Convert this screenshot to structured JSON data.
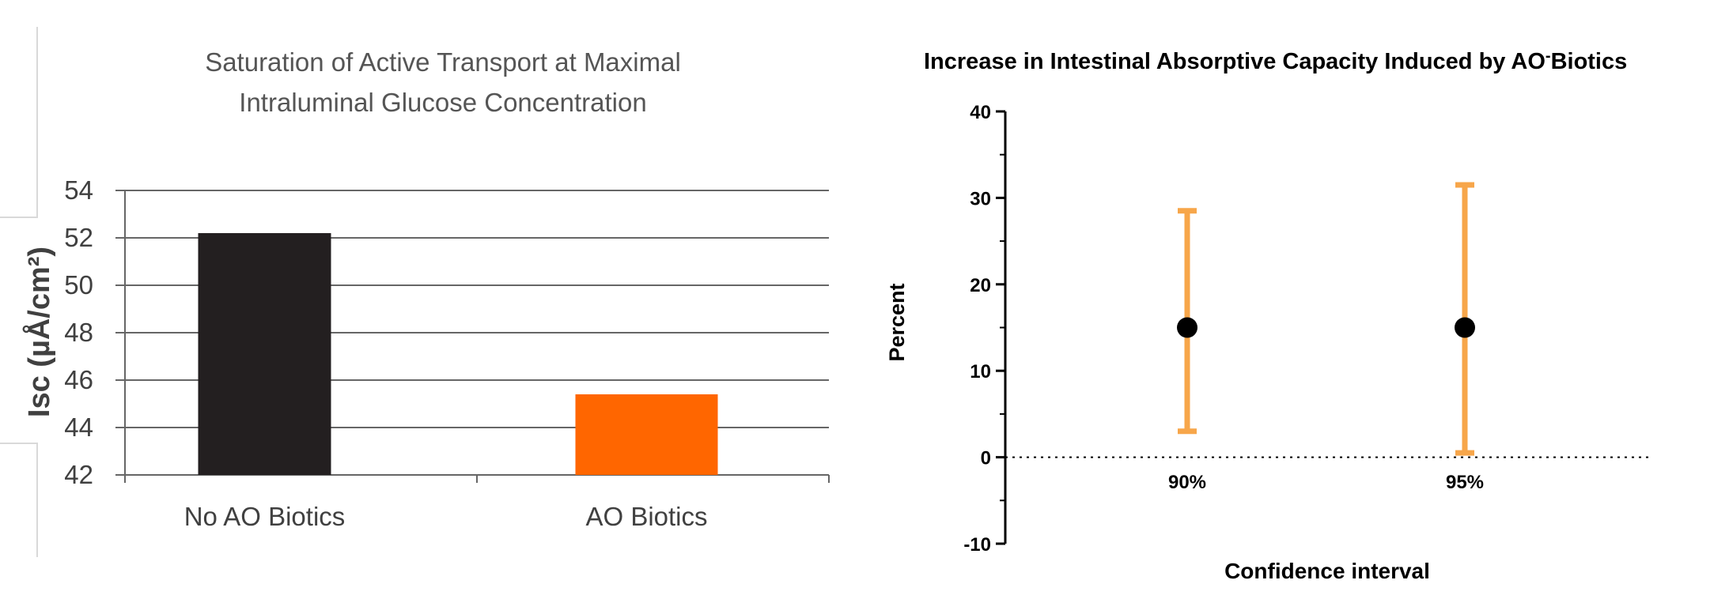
{
  "chart_data": [
    {
      "type": "bar",
      "title": "Saturation of Active Transport at Maximal Intraluminal Glucose Concentration",
      "title_lines": [
        "Saturation of Active Transport at Maximal",
        "Intraluminal Glucose Concentration"
      ],
      "ylabel": "Isc (µÅ/cm²)",
      "xlabel": "",
      "categories": [
        "No AO Biotics",
        "AO Biotics"
      ],
      "values": [
        52.2,
        45.4
      ],
      "colors": [
        "#231f20",
        "#ff6600"
      ],
      "ylim": [
        42,
        54
      ],
      "yticks": [
        "42",
        "44",
        "46",
        "48",
        "50",
        "52",
        "54"
      ],
      "grid": true
    },
    {
      "type": "scatter",
      "title": "Increase in Intestinal Absorptive Capacity Induced by AO-Biotics",
      "title_parts": [
        "Increase in Intestinal Absorptive Capacity Induced by AO",
        "-",
        "Biotics"
      ],
      "xlabel": "Confidence interval",
      "ylabel": "Percent",
      "categories": [
        "90%",
        "95%"
      ],
      "points": [
        {
          "category": "90%",
          "y": 15,
          "lower": 3,
          "upper": 28.5
        },
        {
          "category": "95%",
          "y": 15,
          "lower": 0.5,
          "upper": 31.5
        }
      ],
      "ylim": [
        -10,
        40
      ],
      "yticks": [
        "-10",
        "0",
        "10",
        "20",
        "30",
        "40"
      ],
      "reference_line_y": 0,
      "colors": {
        "errorbar": "#f7a64a",
        "point": "#000000"
      }
    }
  ]
}
